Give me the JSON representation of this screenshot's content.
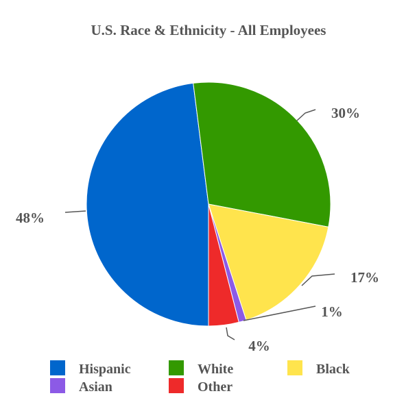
{
  "chart_data": {
    "type": "pie",
    "title": "U.S. Race & Ethnicity - All Employees",
    "slices": [
      {
        "name": "Hispanic",
        "value": 48,
        "label": "48%",
        "color": "#0066CC"
      },
      {
        "name": "White",
        "value": 30,
        "label": "30%",
        "color": "#339900"
      },
      {
        "name": "Black",
        "value": 17,
        "label": "17%",
        "color": "#FFE44D"
      },
      {
        "name": "Asian",
        "value": 1,
        "label": "1%",
        "color": "#8C5AE6"
      },
      {
        "name": "Other",
        "value": 4,
        "label": "4%",
        "color": "#EE2A2A"
      }
    ],
    "legend_placement": "bottom"
  }
}
